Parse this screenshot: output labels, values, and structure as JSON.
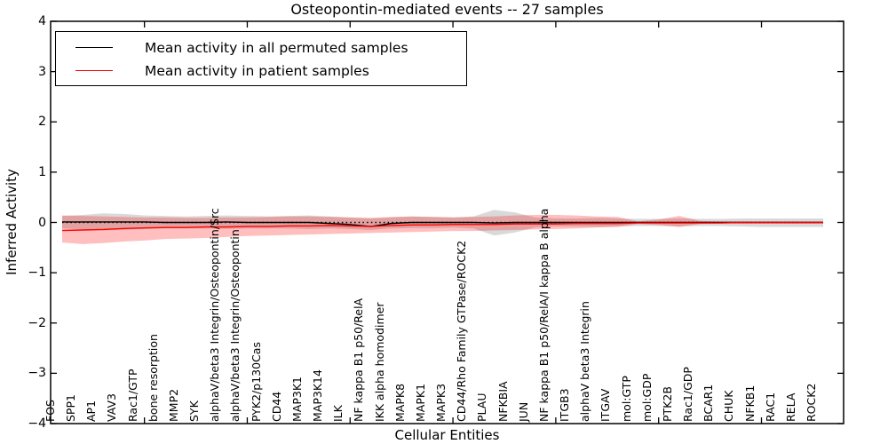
{
  "chart_data": {
    "type": "line",
    "title": "Osteopontin-mediated events -- 27 samples",
    "xlabel": "Cellular Entities",
    "ylabel": "Inferred Activity",
    "ylim": [
      -4,
      4
    ],
    "yticks": [
      4,
      3,
      2,
      1,
      0,
      -1,
      -2,
      -3,
      -4
    ],
    "ytick_labels": [
      "4",
      "3",
      "2",
      "1",
      "0",
      "−1",
      "−2",
      "−3",
      "−4"
    ],
    "top_tick_indices": [
      4,
      9,
      14,
      19,
      24,
      29,
      34
    ],
    "grid": false,
    "legend_position": "upper left",
    "zero_line": {
      "y": 0,
      "style": "dotted",
      "color": "#000000"
    },
    "categories": [
      "FOS",
      "SPP1",
      "AP1",
      "VAV3",
      "Rac1/GTP",
      "bone resorption",
      "MMP2",
      "SYK",
      "alphaV/beta3 Integrin/Osteopontin/Src",
      "alphaV/beta3 Integrin/Osteopontin",
      "PYK2/p130Cas",
      "CD44",
      "MAP3K1",
      "MAP3K14",
      "ILK",
      "NF kappa B1 p50/RelA",
      "IKK alpha homodimer",
      "MAPK8",
      "MAPK1",
      "MAPK3",
      "CD44/Rho Family GTPase/ROCK2",
      "PLAU",
      "NFKBIA",
      "JUN",
      "NF kappa B1 p50/RelA/I kappa B alpha",
      "ITGB3",
      "alphaV beta3 Integrin",
      "ITGAV",
      "mol:GTP",
      "mol:GDP",
      "PTK2B",
      "Rac1/GDP",
      "BCAR1",
      "CHUK",
      "NFKB1",
      "RAC1",
      "RELA",
      "ROCK2"
    ],
    "series": [
      {
        "name": "Mean activity in all permuted samples",
        "color": "#000000",
        "band_color": "#000000",
        "band_alpha": 0.15,
        "values": [
          0.01,
          0.01,
          0.01,
          0.01,
          0.01,
          0.0,
          0.0,
          0.0,
          0.01,
          0.0,
          0.0,
          0.0,
          0.0,
          -0.02,
          -0.04,
          -0.08,
          -0.02,
          0.0,
          0.0,
          0.0,
          0.0,
          -0.01,
          0.0,
          0.0,
          0.0,
          0.0,
          0.0,
          0.0,
          0.0,
          0.0,
          0.0,
          0.0,
          0.0,
          0.0,
          0.0,
          0.0,
          0.0,
          0.0
        ],
        "band_upper": [
          0.13,
          0.15,
          0.18,
          0.17,
          0.14,
          0.13,
          0.12,
          0.13,
          0.14,
          0.13,
          0.12,
          0.13,
          0.14,
          0.12,
          0.1,
          0.08,
          0.1,
          0.12,
          0.11,
          0.1,
          0.12,
          0.25,
          0.2,
          0.1,
          0.08,
          0.08,
          0.09,
          0.08,
          0.07,
          0.07,
          0.08,
          0.07,
          0.07,
          0.08,
          0.08,
          0.08,
          0.08,
          0.08
        ],
        "band_lower": [
          -0.12,
          -0.14,
          -0.16,
          -0.15,
          -0.13,
          -0.12,
          -0.12,
          -0.12,
          -0.13,
          -0.12,
          -0.12,
          -0.12,
          -0.13,
          -0.12,
          -0.13,
          -0.15,
          -0.12,
          -0.11,
          -0.11,
          -0.1,
          -0.12,
          -0.26,
          -0.2,
          -0.1,
          -0.08,
          -0.08,
          -0.09,
          -0.08,
          -0.07,
          -0.07,
          -0.08,
          -0.07,
          -0.07,
          -0.08,
          -0.09,
          -0.09,
          -0.09,
          -0.09
        ]
      },
      {
        "name": "Mean activity in patient samples",
        "color": "#ff0000",
        "band_color": "#ff0000",
        "band_alpha": 0.25,
        "values": [
          -0.16,
          -0.15,
          -0.14,
          -0.12,
          -0.11,
          -0.1,
          -0.1,
          -0.09,
          -0.09,
          -0.08,
          -0.08,
          -0.07,
          -0.07,
          -0.06,
          -0.07,
          -0.08,
          -0.06,
          -0.05,
          -0.05,
          -0.04,
          -0.04,
          -0.04,
          -0.03,
          -0.03,
          -0.03,
          -0.02,
          -0.02,
          -0.02,
          -0.01,
          -0.01,
          -0.01,
          -0.01,
          -0.01,
          0.0,
          0.0,
          0.0,
          0.0,
          0.0
        ],
        "band_upper": [
          0.14,
          0.13,
          0.12,
          0.11,
          0.1,
          0.1,
          0.09,
          0.09,
          0.1,
          0.1,
          0.11,
          0.12,
          0.12,
          0.11,
          0.1,
          0.09,
          0.11,
          0.12,
          0.11,
          0.1,
          0.11,
          0.12,
          0.14,
          0.15,
          0.15,
          0.14,
          0.12,
          0.11,
          0.02,
          0.06,
          0.13,
          0.03,
          0.02,
          0.02,
          0.02,
          0.02,
          0.02,
          0.02
        ],
        "band_lower": [
          -0.4,
          -0.43,
          -0.41,
          -0.38,
          -0.36,
          -0.33,
          -0.32,
          -0.31,
          -0.29,
          -0.27,
          -0.26,
          -0.25,
          -0.24,
          -0.23,
          -0.22,
          -0.21,
          -0.2,
          -0.19,
          -0.18,
          -0.17,
          -0.17,
          -0.16,
          -0.15,
          -0.14,
          -0.13,
          -0.12,
          -0.1,
          -0.09,
          -0.03,
          -0.05,
          -0.09,
          -0.03,
          -0.02,
          -0.02,
          -0.02,
          -0.02,
          -0.02,
          -0.02
        ]
      }
    ]
  }
}
